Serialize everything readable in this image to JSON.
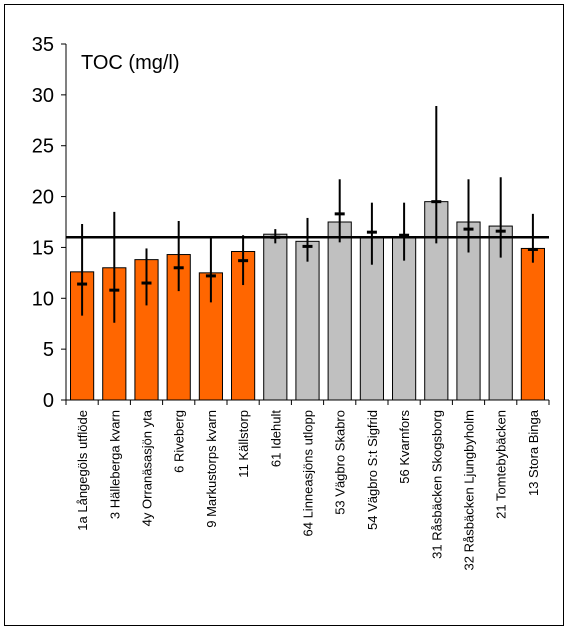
{
  "chart_data": {
    "type": "bar",
    "title": "TOC (mg/l)",
    "xlabel": "",
    "ylabel": "",
    "ylim": [
      0,
      35
    ],
    "yticks": [
      0,
      5,
      10,
      15,
      20,
      25,
      30,
      35
    ],
    "reference_line": 16,
    "colors": {
      "orange": "#FF6600",
      "grey": "#C0C0C0",
      "line": "#000000"
    },
    "categories": [
      "1a Långegöls utflöde",
      "3 Hälleberga kvarn",
      "4y Orranäsasjön yta",
      "6 Riveberg",
      "9 Markustorps kvarn",
      "11 Källstorp",
      "61 Idehult",
      "64 Linneasjöns utlopp",
      "53 Vägbro Skabro",
      "54 Vägbro S:t Sigfrid",
      "56 Kvarnfors",
      "31 Råsbäcken Skogsborg",
      "32 Råsbäcken Ljungbyholm",
      "21 Tomtebybäcken",
      "13 Stora Binga"
    ],
    "bar_colors": [
      "orange",
      "orange",
      "orange",
      "orange",
      "orange",
      "orange",
      "grey",
      "grey",
      "grey",
      "grey",
      "grey",
      "grey",
      "grey",
      "grey",
      "orange"
    ],
    "values": [
      12.6,
      13.0,
      13.8,
      14.3,
      12.5,
      14.6,
      16.3,
      15.6,
      17.5,
      16.0,
      16.0,
      19.5,
      17.5,
      17.1,
      14.9
    ],
    "median": [
      11.4,
      10.8,
      11.5,
      13.0,
      12.2,
      13.7,
      16.0,
      15.1,
      18.3,
      16.5,
      16.2,
      19.5,
      16.8,
      16.6,
      14.8
    ],
    "min": [
      8.3,
      7.6,
      9.3,
      10.7,
      9.6,
      11.3,
      15.4,
      13.6,
      15.5,
      13.3,
      13.7,
      15.4,
      14.5,
      14.0,
      13.5
    ],
    "max": [
      17.3,
      18.5,
      14.9,
      17.6,
      16.0,
      16.2,
      16.8,
      17.9,
      21.7,
      19.4,
      19.4,
      28.9,
      21.7,
      21.9,
      18.3
    ]
  }
}
